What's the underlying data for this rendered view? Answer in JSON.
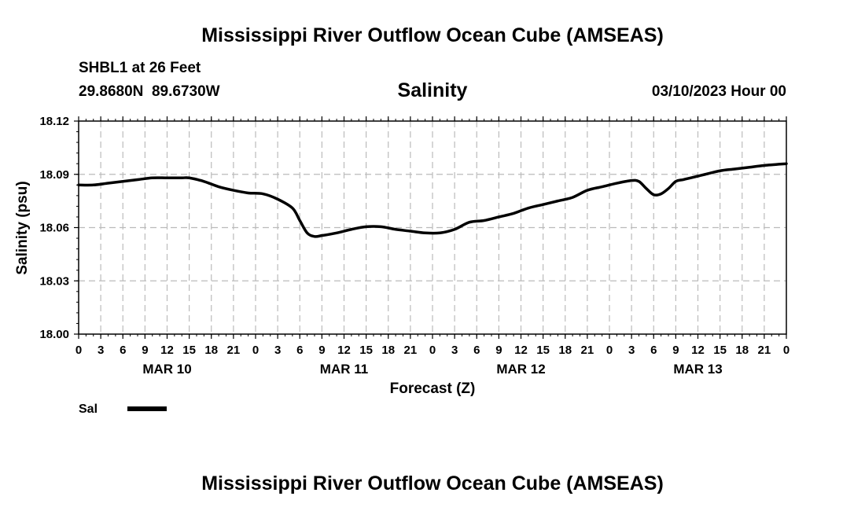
{
  "page": {
    "title": "Mississippi River Outflow Ocean Cube (AMSEAS)",
    "station": "SHBL1 at 26 Feet",
    "coords": "29.8680N  89.6730W",
    "date_label": "03/10/2023 Hour 00",
    "footer_title": "Mississippi River Outflow Ocean Cube (AMSEAS)"
  },
  "chart_data": {
    "type": "line",
    "title": "Salinity",
    "xlabel": "Forecast (Z)",
    "ylabel": "Salinity (psu)",
    "ylim": [
      18.0,
      18.12
    ],
    "yticks": [
      "18.00",
      "18.03",
      "18.06",
      "18.09",
      "18.12"
    ],
    "xlim_hours": [
      0,
      96
    ],
    "xtick_step_hours": 3,
    "xtick_labels": [
      "0",
      "3",
      "6",
      "9",
      "12",
      "15",
      "18",
      "21",
      "0",
      "3",
      "6",
      "9",
      "12",
      "15",
      "18",
      "21",
      "0",
      "3",
      "6",
      "9",
      "12",
      "15",
      "18",
      "21",
      "0",
      "3",
      "6",
      "9",
      "12",
      "15",
      "18",
      "21",
      "0"
    ],
    "day_labels": [
      {
        "label": "MAR 10",
        "hour": 12
      },
      {
        "label": "MAR 11",
        "hour": 36
      },
      {
        "label": "MAR 12",
        "hour": 60
      },
      {
        "label": "MAR 13",
        "hour": 84
      }
    ],
    "grid": true,
    "legend": {
      "position": "bottom-left",
      "label": "Sal"
    },
    "series": [
      {
        "name": "Sal",
        "color": "#000000",
        "x": [
          0,
          2,
          4,
          6,
          8,
          10,
          12,
          14,
          15,
          17,
          19,
          21,
          23,
          25,
          27,
          29,
          30,
          31,
          32,
          33,
          35,
          37,
          39,
          41,
          43,
          45,
          47,
          49,
          51,
          53,
          55,
          57,
          59,
          61,
          63,
          65,
          67,
          69,
          71,
          73,
          75,
          76,
          77,
          78,
          79,
          80,
          81,
          82,
          83,
          85,
          87,
          89,
          91,
          93,
          96
        ],
        "y": [
          18.084,
          18.084,
          18.085,
          18.086,
          18.087,
          18.088,
          18.088,
          18.088,
          18.088,
          18.086,
          18.083,
          18.081,
          18.0795,
          18.079,
          18.076,
          18.071,
          18.064,
          18.057,
          18.055,
          18.0555,
          18.057,
          18.059,
          18.0605,
          18.0605,
          18.059,
          18.058,
          18.057,
          18.057,
          18.059,
          18.063,
          18.064,
          18.066,
          18.068,
          18.071,
          18.073,
          18.075,
          18.077,
          18.081,
          18.083,
          18.085,
          18.0865,
          18.086,
          18.082,
          18.0785,
          18.079,
          18.082,
          18.086,
          18.087,
          18.088,
          18.09,
          18.092,
          18.093,
          18.094,
          18.095,
          18.096
        ]
      }
    ]
  }
}
